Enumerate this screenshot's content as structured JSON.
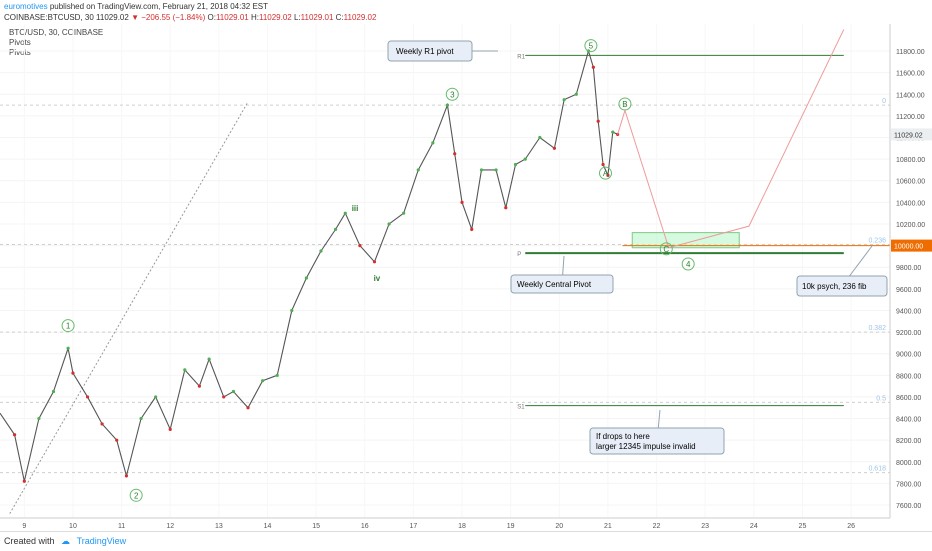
{
  "header": {
    "author": "euromotives",
    "published": "published on TradingView.com, February 21, 2018 04:32 EST",
    "symbol": "COINBASE:BTCUSD, 30",
    "last": "11029.02",
    "change": "−206.55 (−1.84%)",
    "ohlc_o_label": "O:",
    "ohlc_o": "11029.01",
    "ohlc_h_label": "H:",
    "ohlc_h": "11029.02",
    "ohlc_l_label": "L:",
    "ohlc_l": "11029.01",
    "ohlc_c_label": "C:",
    "ohlc_c": "11029.02"
  },
  "legend": {
    "line1": "BTC/USD, 30, COINBASE",
    "line2": "Pivots",
    "line3": "Pivots"
  },
  "footer": {
    "created": "Created with",
    "brand": "TradingView"
  },
  "colors": {
    "up": "#4caf50",
    "down": "#d32f2f",
    "pivot": "#2e7d32",
    "price_tag": "#ef6c00",
    "fib": "#9fc5e8",
    "box": "#b9f6ca"
  },
  "chart_data": {
    "type": "line",
    "title": "",
    "xlabel": "",
    "ylabel": "",
    "x_ticks": [
      "9",
      "10",
      "11",
      "12",
      "13",
      "14",
      "15",
      "16",
      "17",
      "18",
      "19",
      "20",
      "21",
      "22",
      "23",
      "24",
      "25",
      "26"
    ],
    "y_ticks": [
      7600,
      7800,
      8000,
      8200,
      8400,
      8600,
      8800,
      9000,
      9200,
      9400,
      9600,
      9800,
      10000,
      10200,
      10400,
      10600,
      10800,
      11000,
      11200,
      11400,
      11600,
      11800
    ],
    "y_tick_labels": [
      "7600.00",
      "7800.00",
      "8000.00",
      "8200.00",
      "8400.00",
      "8600.00",
      "8800.00",
      "9000.00",
      "9200.00",
      "9400.00",
      "9600.00",
      "9800.00",
      "10000.00",
      "10200.00",
      "10400.00",
      "10600.00",
      "10800.00",
      "11000.00",
      "11200.00",
      "11400.00",
      "11600.00",
      "11800.00"
    ],
    "ylim": [
      7480,
      12050
    ],
    "xlim": [
      8.5,
      26.8
    ],
    "price": {
      "x": [
        8.5,
        8.8,
        9.0,
        9.3,
        9.6,
        9.9,
        10.0,
        10.3,
        10.6,
        10.9,
        11.1,
        11.4,
        11.7,
        12.0,
        12.3,
        12.6,
        12.8,
        13.1,
        13.3,
        13.6,
        13.9,
        14.2,
        14.5,
        14.8,
        15.1,
        15.4,
        15.6,
        15.9,
        16.2,
        16.5,
        16.8,
        17.1,
        17.4,
        17.7,
        17.85,
        18.0,
        18.2,
        18.4,
        18.7,
        18.9,
        19.1,
        19.3,
        19.6,
        19.9,
        20.1,
        20.35,
        20.6,
        20.7,
        20.8,
        20.9,
        21.0,
        21.1,
        21.2
      ],
      "y": [
        8450,
        8250,
        7820,
        8400,
        8650,
        9050,
        8820,
        8600,
        8350,
        8200,
        7870,
        8400,
        8600,
        8300,
        8850,
        8700,
        8950,
        8600,
        8650,
        8500,
        8750,
        8800,
        9400,
        9700,
        9950,
        10150,
        10300,
        10000,
        9850,
        10200,
        10300,
        10700,
        10950,
        11300,
        10850,
        10400,
        10150,
        10700,
        10700,
        10350,
        10750,
        10800,
        11000,
        10900,
        11350,
        11400,
        11800,
        11650,
        11150,
        10750,
        10650,
        11050,
        11029
      ]
    },
    "projection": {
      "x": [
        21.2,
        21.35,
        22.25,
        23.9,
        25.85
      ],
      "y": [
        11029,
        11250,
        9980,
        10180,
        12000
      ]
    },
    "pivots": [
      {
        "label": "R1",
        "value": 11760
      },
      {
        "label": "P",
        "value": 9930
      },
      {
        "label": "S1",
        "value": 8520
      }
    ],
    "fib_levels": [
      {
        "label": "0",
        "value": 11300
      },
      {
        "label": "0.236",
        "value": 10010
      },
      {
        "label": "0.382",
        "value": 9200
      },
      {
        "label": "0.5",
        "value": 8550
      },
      {
        "label": "0.618",
        "value": 7900
      }
    ],
    "last_price_label": "11029.02",
    "psych_level_label": "10000.00",
    "wave_labels": [
      {
        "text": "1",
        "x": 9.9,
        "y": 9260
      },
      {
        "text": "2",
        "x": 11.3,
        "y": 7690
      },
      {
        "text": "iii",
        "x": 15.8,
        "y": 10350
      },
      {
        "text": "iv",
        "x": 16.25,
        "y": 9700
      },
      {
        "text": "3",
        "x": 17.8,
        "y": 11400
      },
      {
        "text": "5",
        "x": 20.65,
        "y": 11850
      },
      {
        "text": "4",
        "x": 22.65,
        "y": 9830
      },
      {
        "text": "B",
        "x": 21.35,
        "y": 11310
      },
      {
        "text": "C",
        "x": 22.2,
        "y": 9970
      },
      {
        "text": "A",
        "x": 20.95,
        "y": 10670
      }
    ],
    "annotations": [
      {
        "text": "Weekly R1 pivot"
      },
      {
        "text": "Weekly Central Pivot"
      },
      {
        "text": "10k psych, 236 fib"
      },
      {
        "text": "If drops to here"
      },
      {
        "text": "larger 12345 impulse invalid"
      }
    ]
  }
}
